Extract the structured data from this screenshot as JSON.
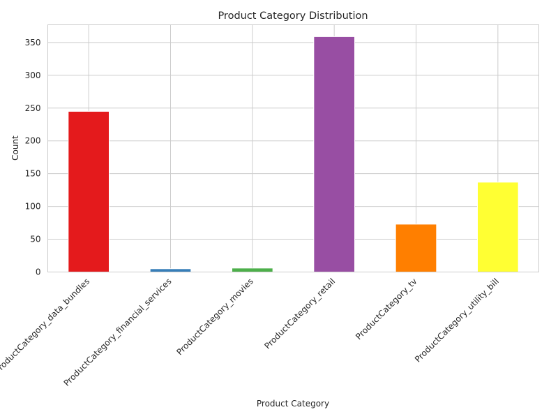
{
  "chart_data": {
    "type": "bar",
    "title": "Product Category Distribution",
    "xlabel": "Product Category",
    "ylabel": "Count",
    "categories": [
      "ProductCategory_data_bundles",
      "ProductCategory_financial_services",
      "ProductCategory_movies",
      "ProductCategory_retail",
      "ProductCategory_tv",
      "ProductCategory_utility_bill"
    ],
    "values": [
      245,
      5,
      6,
      359,
      73,
      137
    ],
    "colors": [
      "#e41a1c",
      "#377eb8",
      "#4daf4a",
      "#984ea3",
      "#ff7f00",
      "#ffff33"
    ],
    "ylim": [
      0,
      377
    ],
    "yticks": [
      0,
      50,
      100,
      150,
      200,
      250,
      300,
      350
    ],
    "grid": true,
    "legend": "none"
  }
}
